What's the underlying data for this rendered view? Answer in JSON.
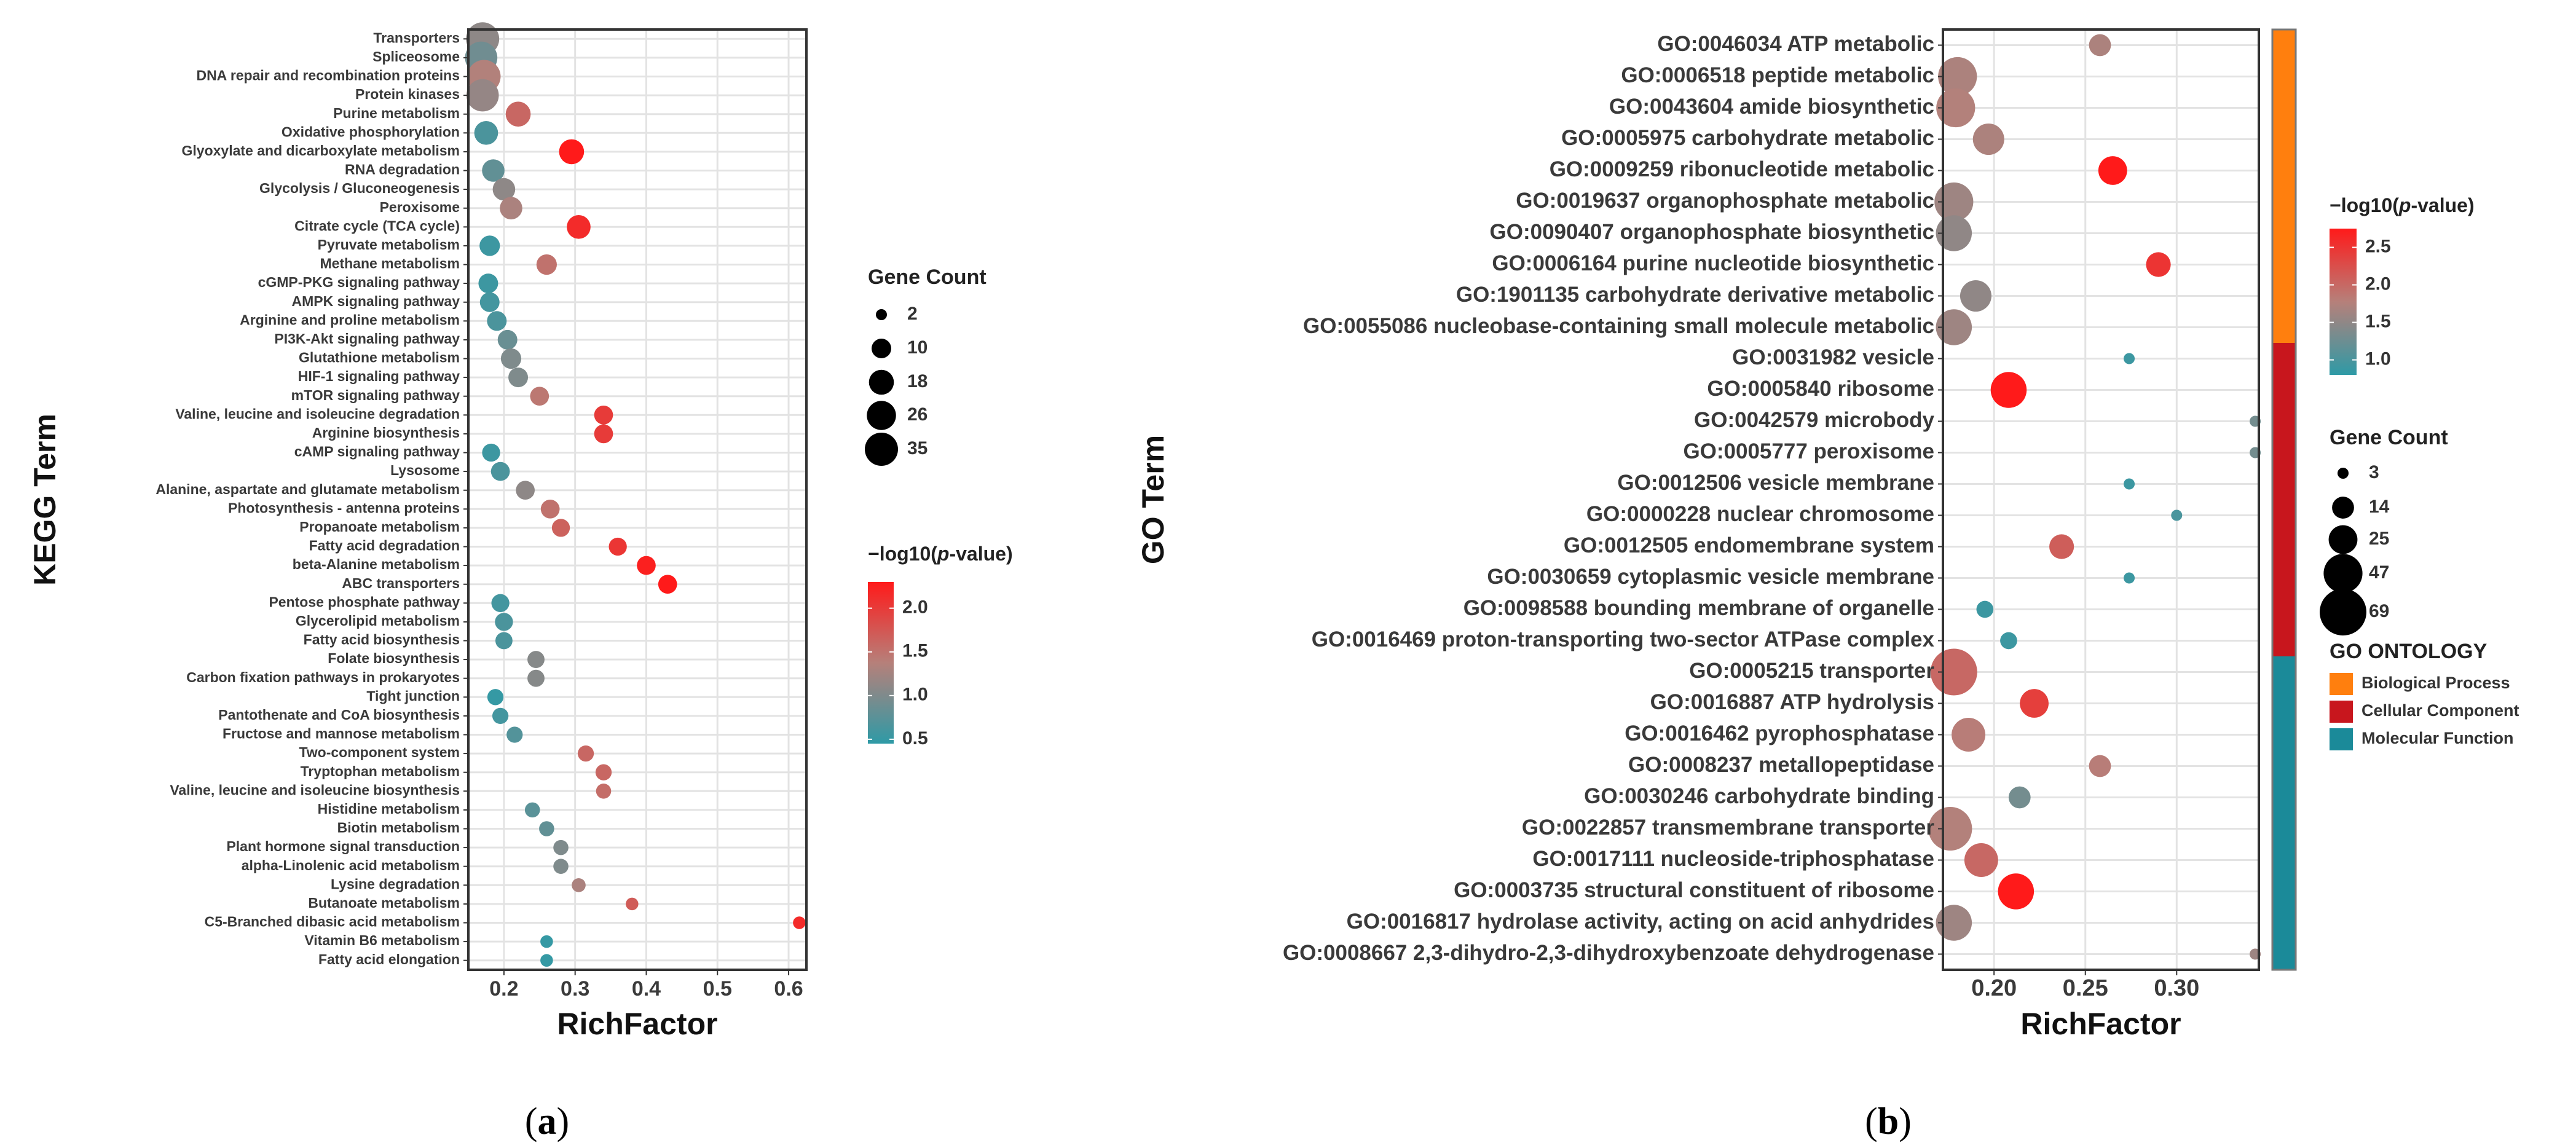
{
  "panels": [
    {
      "label_open": "(",
      "label_letter": "a",
      "label_close": ")",
      "chart_data": {
        "type": "scatter",
        "subtype": "dot-plot",
        "title": "",
        "xlabel": "RichFactor",
        "ylabel": "KEGG Term",
        "xlim": [
          0.15,
          0.625
        ],
        "xticks": [
          0.2,
          0.3,
          0.4,
          0.5,
          0.6
        ],
        "xtick_labels": [
          "0.2",
          "0.3",
          "0.4",
          "0.5",
          "0.6"
        ],
        "grid": true,
        "legend_position": "right",
        "size_legend": {
          "title": "Gene Count",
          "values": [
            2,
            10,
            18,
            26,
            35
          ],
          "labels": [
            "2",
            "10",
            "18",
            "26",
            "35"
          ]
        },
        "color_legend": {
          "title_prefix": "−log10(",
          "title_var": "p",
          "title_suffix": "-value)",
          "range": [
            0.45,
            2.3
          ],
          "ticks": [
            0.5,
            1.0,
            1.5,
            2.0
          ],
          "tick_labels": [
            "0.5",
            "1.0",
            "1.5",
            "2.0"
          ],
          "low_color": "#2e9aa6",
          "mid_color": "#b6807a",
          "high_color": "#ff1a1a"
        },
        "terms": [
          {
            "term": "Transporters",
            "rich": 0.17,
            "count": 35,
            "logp": 1.1
          },
          {
            "term": "Spliceosome",
            "rich": 0.168,
            "count": 33,
            "logp": 0.9
          },
          {
            "term": "DNA repair and recombination proteins",
            "rich": 0.172,
            "count": 35,
            "logp": 1.35
          },
          {
            "term": "Protein kinases",
            "rich": 0.17,
            "count": 33,
            "logp": 1.15
          },
          {
            "term": "Purine metabolism",
            "rich": 0.22,
            "count": 18,
            "logp": 1.6
          },
          {
            "term": "Oxidative phosphorylation",
            "rich": 0.175,
            "count": 16,
            "logp": 0.65
          },
          {
            "term": "Glyoxylate and dicarboxylate metabolism",
            "rich": 0.295,
            "count": 18,
            "logp": 2.3
          },
          {
            "term": "RNA degradation",
            "rich": 0.185,
            "count": 14,
            "logp": 0.8
          },
          {
            "term": "Glycolysis / Gluconeogenesis",
            "rich": 0.2,
            "count": 14,
            "logp": 1.1
          },
          {
            "term": "Peroxisome",
            "rich": 0.21,
            "count": 14,
            "logp": 1.3
          },
          {
            "term": "Citrate cycle (TCA cycle)",
            "rich": 0.305,
            "count": 16,
            "logp": 2.15
          },
          {
            "term": "Pyruvate metabolism",
            "rich": 0.18,
            "count": 11,
            "logp": 0.55
          },
          {
            "term": "Methane metabolism",
            "rich": 0.26,
            "count": 11,
            "logp": 1.5
          },
          {
            "term": "cGMP-PKG signaling pathway",
            "rich": 0.178,
            "count": 10,
            "logp": 0.55
          },
          {
            "term": "AMPK signaling pathway",
            "rich": 0.18,
            "count": 10,
            "logp": 0.6
          },
          {
            "term": "Arginine and proline metabolism",
            "rich": 0.19,
            "count": 10,
            "logp": 0.65
          },
          {
            "term": "PI3K-Akt signaling pathway",
            "rich": 0.205,
            "count": 10,
            "logp": 0.85
          },
          {
            "term": "Glutathione metabolism",
            "rich": 0.21,
            "count": 11,
            "logp": 1.0
          },
          {
            "term": "HIF-1 signaling pathway",
            "rich": 0.22,
            "count": 10,
            "logp": 1.0
          },
          {
            "term": "mTOR signaling pathway",
            "rich": 0.25,
            "count": 9,
            "logp": 1.45
          },
          {
            "term": "Valine, leucine and isoleucine degradation",
            "rich": 0.34,
            "count": 9,
            "logp": 2.0
          },
          {
            "term": "Arginine biosynthesis",
            "rich": 0.34,
            "count": 9,
            "logp": 2.0
          },
          {
            "term": "cAMP signaling pathway",
            "rich": 0.182,
            "count": 8,
            "logp": 0.55
          },
          {
            "term": "Lysosome",
            "rich": 0.195,
            "count": 9,
            "logp": 0.65
          },
          {
            "term": "Alanine, aspartate and glutamate metabolism",
            "rich": 0.23,
            "count": 9,
            "logp": 1.1
          },
          {
            "term": "Photosynthesis - antenna proteins",
            "rich": 0.265,
            "count": 9,
            "logp": 1.5
          },
          {
            "term": "Propanoate metabolism",
            "rich": 0.28,
            "count": 8,
            "logp": 1.65
          },
          {
            "term": "Fatty acid degradation",
            "rich": 0.36,
            "count": 8,
            "logp": 2.05
          },
          {
            "term": "beta-Alanine metabolism",
            "rich": 0.4,
            "count": 9,
            "logp": 2.25
          },
          {
            "term": "ABC transporters",
            "rich": 0.43,
            "count": 9,
            "logp": 2.3
          },
          {
            "term": "Pentose phosphate pathway",
            "rich": 0.195,
            "count": 8,
            "logp": 0.6
          },
          {
            "term": "Glycerolipid metabolism",
            "rich": 0.2,
            "count": 8,
            "logp": 0.65
          },
          {
            "term": "Fatty acid biosynthesis",
            "rich": 0.2,
            "count": 7,
            "logp": 0.65
          },
          {
            "term": "Folate biosynthesis",
            "rich": 0.245,
            "count": 7,
            "logp": 1.05
          },
          {
            "term": "Carbon fixation pathways in prokaryotes",
            "rich": 0.245,
            "count": 7,
            "logp": 1.05
          },
          {
            "term": "Tight junction",
            "rich": 0.188,
            "count": 6,
            "logp": 0.5
          },
          {
            "term": "Pantothenate and CoA biosynthesis",
            "rich": 0.195,
            "count": 6,
            "logp": 0.6
          },
          {
            "term": "Fructose and mannose metabolism",
            "rich": 0.215,
            "count": 6,
            "logp": 0.7
          },
          {
            "term": "Two-component system",
            "rich": 0.315,
            "count": 6,
            "logp": 1.6
          },
          {
            "term": "Tryptophan metabolism",
            "rich": 0.34,
            "count": 6,
            "logp": 1.6
          },
          {
            "term": "Valine, leucine and isoleucine biosynthesis",
            "rich": 0.34,
            "count": 5,
            "logp": 1.55
          },
          {
            "term": "Histidine metabolism",
            "rich": 0.24,
            "count": 5,
            "logp": 0.75
          },
          {
            "term": "Biotin metabolism",
            "rich": 0.26,
            "count": 5,
            "logp": 0.8
          },
          {
            "term": "Plant hormone signal transduction",
            "rich": 0.28,
            "count": 5,
            "logp": 1.0
          },
          {
            "term": "alpha-Linolenic acid metabolism",
            "rich": 0.28,
            "count": 5,
            "logp": 1.0
          },
          {
            "term": "Lysine degradation",
            "rich": 0.305,
            "count": 4,
            "logp": 1.3
          },
          {
            "term": "Butanoate metabolism",
            "rich": 0.38,
            "count": 3,
            "logp": 1.7
          },
          {
            "term": "C5-Branched dibasic acid metabolism",
            "rich": 0.615,
            "count": 3,
            "logp": 2.15
          },
          {
            "term": "Vitamin B6 metabolism",
            "rich": 0.26,
            "count": 3,
            "logp": 0.5
          },
          {
            "term": "Fatty acid elongation",
            "rich": 0.26,
            "count": 3,
            "logp": 0.5
          }
        ]
      }
    },
    {
      "label_open": "(",
      "label_letter": "b",
      "label_close": ")",
      "chart_data": {
        "type": "scatter",
        "subtype": "dot-plot",
        "title": "",
        "xlabel": "RichFactor",
        "ylabel": "GO Term",
        "xlim": [
          0.172,
          0.345
        ],
        "xticks": [
          0.2,
          0.25,
          0.3
        ],
        "xtick_labels": [
          "0.20",
          "0.25",
          "0.30"
        ],
        "grid": true,
        "legend_position": "right",
        "color_legend": {
          "title_prefix": "−log10(",
          "title_var": "p",
          "title_suffix": "-value)",
          "range": [
            0.8,
            2.75
          ],
          "ticks": [
            1.0,
            1.5,
            2.0,
            2.5
          ],
          "tick_labels": [
            "1.0",
            "1.5",
            "2.0",
            "2.5"
          ],
          "low_color": "#2e9aa6",
          "mid_color": "#b6807a",
          "high_color": "#ff1a1a"
        },
        "size_legend": {
          "title": "Gene Count",
          "values": [
            3,
            14,
            25,
            47,
            69
          ],
          "labels": [
            "3",
            "14",
            "25",
            "47",
            "69"
          ]
        },
        "ontology_legend": {
          "title": "GO ONTOLOGY",
          "items": [
            {
              "label": "Biological Process",
              "color": "#ff7f0e"
            },
            {
              "label": "Cellular Component",
              "color": "#c8161d"
            },
            {
              "label": "Molecular Function",
              "color": "#1b8a99"
            }
          ]
        },
        "terms": [
          {
            "term": "GO:0046034 ATP metabolic",
            "rich": 0.258,
            "count": 14,
            "logp": 1.7,
            "ontology": "Biological Process"
          },
          {
            "term": "GO:0006518 peptide metabolic",
            "rich": 0.18,
            "count": 47,
            "logp": 1.7,
            "ontology": "Biological Process"
          },
          {
            "term": "GO:0043604 amide biosynthetic",
            "rich": 0.179,
            "count": 47,
            "logp": 1.75,
            "ontology": "Biological Process"
          },
          {
            "term": "GO:0005975 carbohydrate metabolic",
            "rich": 0.197,
            "count": 30,
            "logp": 1.7,
            "ontology": "Biological Process"
          },
          {
            "term": "GO:0009259 ribonucleotide metabolic",
            "rich": 0.265,
            "count": 25,
            "logp": 2.75,
            "ontology": "Biological Process"
          },
          {
            "term": "GO:0019637 organophosphate metabolic",
            "rich": 0.178,
            "count": 47,
            "logp": 1.6,
            "ontology": "Biological Process"
          },
          {
            "term": "GO:0090407 organophosphate biosynthetic",
            "rich": 0.178,
            "count": 40,
            "logp": 1.5,
            "ontology": "Biological Process"
          },
          {
            "term": "GO:0006164 purine nucleotide biosynthetic",
            "rich": 0.29,
            "count": 18,
            "logp": 2.5,
            "ontology": "Biological Process"
          },
          {
            "term": "GO:1901135 carbohydrate derivative metabolic",
            "rich": 0.19,
            "count": 30,
            "logp": 1.5,
            "ontology": "Biological Process"
          },
          {
            "term": "GO:0055086 nucleobase-containing small molecule metabolic",
            "rich": 0.178,
            "count": 40,
            "logp": 1.6,
            "ontology": "Biological Process"
          },
          {
            "term": "GO:0031982 vesicle",
            "rich": 0.274,
            "count": 3,
            "logp": 0.9,
            "ontology": "Cellular Component"
          },
          {
            "term": "GO:0005840 ribosome",
            "rich": 0.208,
            "count": 40,
            "logp": 2.75,
            "ontology": "Cellular Component"
          },
          {
            "term": "GO:0042579 microbody",
            "rich": 0.343,
            "count": 3,
            "logp": 1.3,
            "ontology": "Cellular Component"
          },
          {
            "term": "GO:0005777 peroxisome",
            "rich": 0.343,
            "count": 3,
            "logp": 1.3,
            "ontology": "Cellular Component"
          },
          {
            "term": "GO:0012506 vesicle membrane",
            "rich": 0.274,
            "count": 3,
            "logp": 0.9,
            "ontology": "Cellular Component"
          },
          {
            "term": "GO:0000228 nuclear chromosome",
            "rich": 0.3,
            "count": 3,
            "logp": 1.0,
            "ontology": "Cellular Component"
          },
          {
            "term": "GO:0012505 endomembrane system",
            "rich": 0.237,
            "count": 18,
            "logp": 2.1,
            "ontology": "Cellular Component"
          },
          {
            "term": "GO:0030659 cytoplasmic vesicle membrane",
            "rich": 0.274,
            "count": 3,
            "logp": 0.9,
            "ontology": "Cellular Component"
          },
          {
            "term": "GO:0098588 bounding membrane of organelle",
            "rich": 0.195,
            "count": 8,
            "logp": 0.9,
            "ontology": "Cellular Component"
          },
          {
            "term": "GO:0016469 proton-transporting two-sector ATPase complex",
            "rich": 0.208,
            "count": 8,
            "logp": 0.9,
            "ontology": "Cellular Component"
          },
          {
            "term": "GO:0005215 transporter",
            "rich": 0.178,
            "count": 69,
            "logp": 2.0,
            "ontology": "Molecular Function"
          },
          {
            "term": "GO:0016887 ATP hydrolysis",
            "rich": 0.222,
            "count": 25,
            "logp": 2.4,
            "ontology": "Molecular Function"
          },
          {
            "term": "GO:0016462 pyrophosphatase",
            "rich": 0.186,
            "count": 35,
            "logp": 1.8,
            "ontology": "Molecular Function"
          },
          {
            "term": "GO:0008237 metallopeptidase",
            "rich": 0.258,
            "count": 14,
            "logp": 1.8,
            "ontology": "Molecular Function"
          },
          {
            "term": "GO:0030246 carbohydrate binding",
            "rich": 0.214,
            "count": 14,
            "logp": 1.3,
            "ontology": "Molecular Function"
          },
          {
            "term": "GO:0022857 transmembrane transporter",
            "rich": 0.176,
            "count": 60,
            "logp": 1.75,
            "ontology": "Molecular Function"
          },
          {
            "term": "GO:0017111 nucleoside-triphosphatase",
            "rich": 0.193,
            "count": 35,
            "logp": 2.0,
            "ontology": "Molecular Function"
          },
          {
            "term": "GO:0003735 structural constituent of ribosome",
            "rich": 0.212,
            "count": 40,
            "logp": 2.75,
            "ontology": "Molecular Function"
          },
          {
            "term": "GO:0016817 hydrolase activity, acting on acid anhydrides",
            "rich": 0.178,
            "count": 40,
            "logp": 1.6,
            "ontology": "Molecular Function"
          },
          {
            "term": "GO:0008667 2,3-dihydro-2,3-dihydroxybenzoate dehydrogenase",
            "rich": 0.343,
            "count": 3,
            "logp": 1.6,
            "ontology": "Molecular Function"
          }
        ]
      }
    }
  ]
}
